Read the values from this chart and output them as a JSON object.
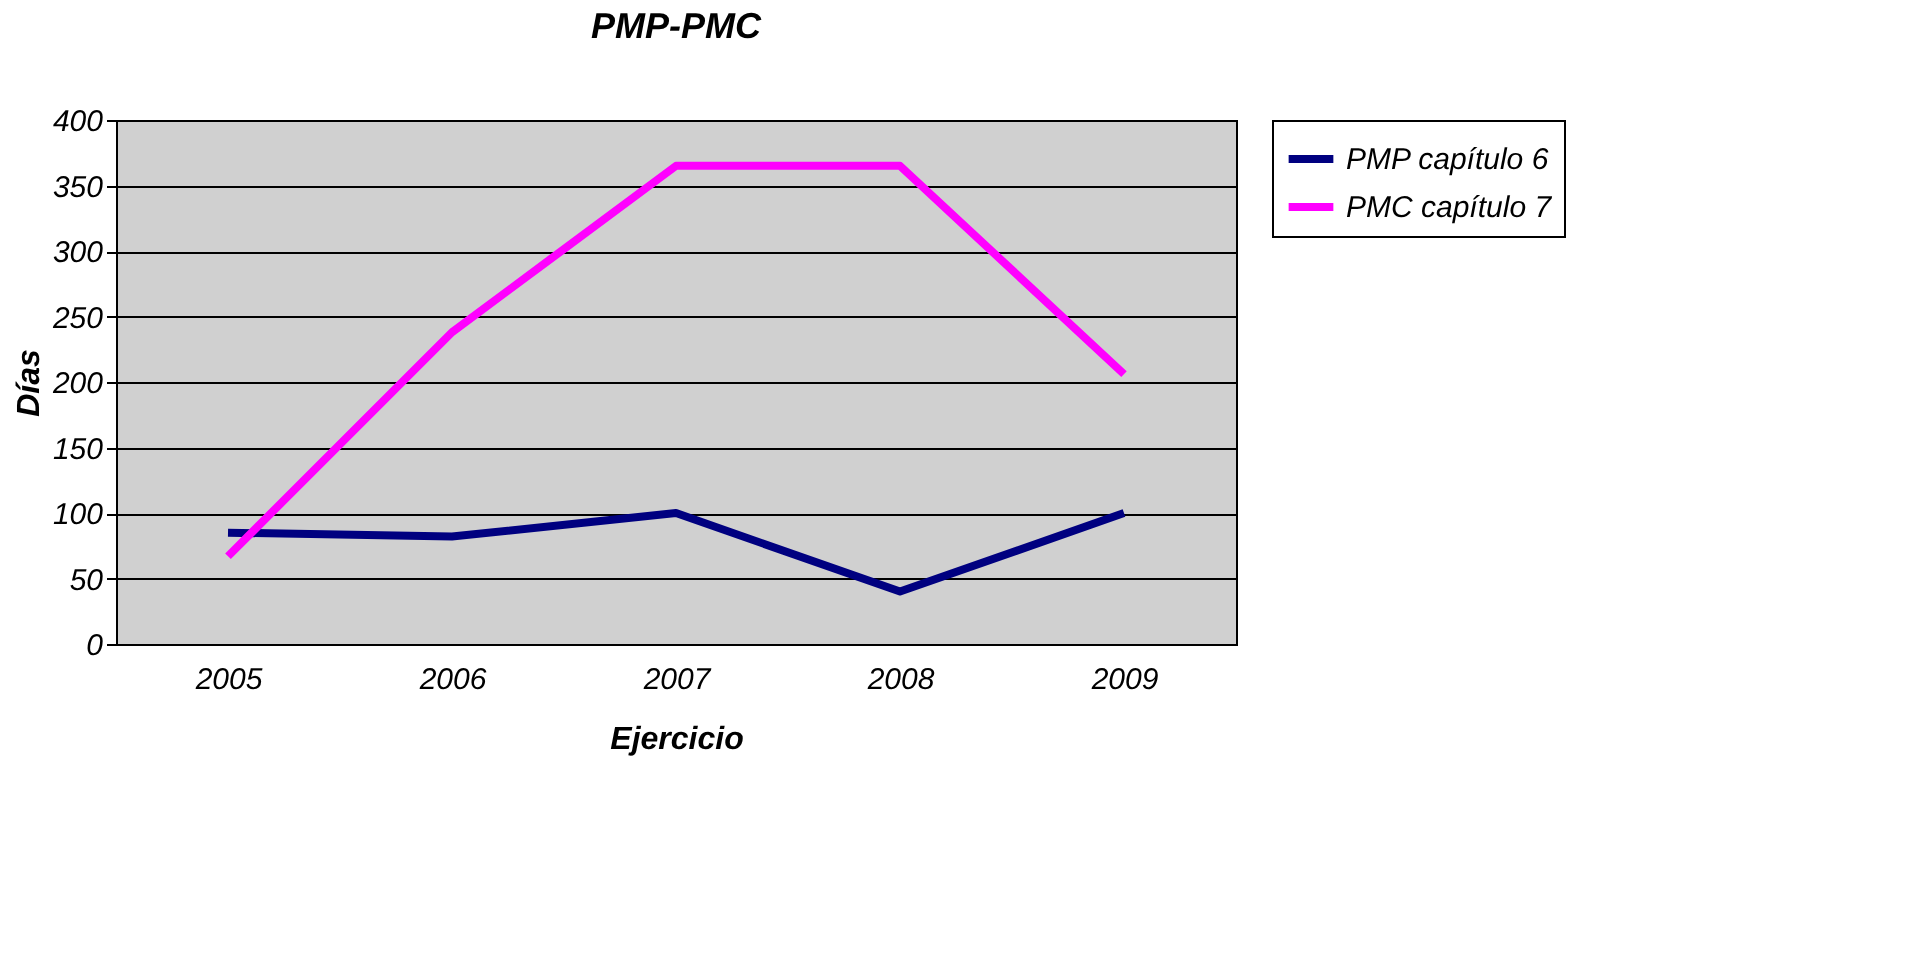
{
  "chart_data": {
    "type": "line",
    "title": "PMP-PMC",
    "xlabel": "Ejercicio",
    "ylabel": "Días",
    "categories": [
      "2005",
      "2006",
      "2007",
      "2008",
      "2009"
    ],
    "series": [
      {
        "name": "PMP capítulo 6",
        "color": "#000080",
        "values": [
          85,
          82,
          100,
          40,
          100
        ]
      },
      {
        "name": "PMC capítulo 7",
        "color": "#ff00ff",
        "values": [
          67,
          238,
          365,
          365,
          206
        ]
      }
    ],
    "ylim": [
      0,
      400
    ],
    "yticks": [
      0,
      50,
      100,
      150,
      200,
      250,
      300,
      350,
      400
    ],
    "grid": "y",
    "legend": "right",
    "marker": "none",
    "line_style": "solid"
  }
}
